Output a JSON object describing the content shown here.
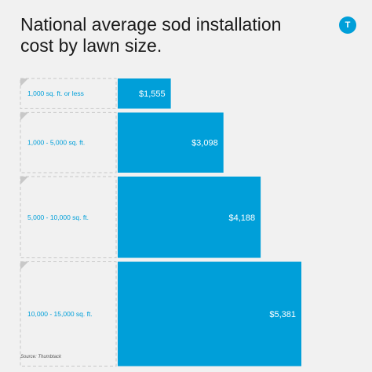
{
  "header": {
    "title_line1": "National average sod installation",
    "title_line2": "cost by lawn size.",
    "logo_letter": "T"
  },
  "colors": {
    "bar": "#009fd9",
    "label_text": "#009fd9",
    "value_text": "#ffffff",
    "background": "#f1f1f1"
  },
  "chart_data": {
    "type": "bar",
    "orientation": "horizontal",
    "categories": [
      "1,000 sq. ft. or less",
      "1,000 - 5,000 sq. ft.",
      "5,000 - 10,000 sq. ft.",
      "10,000 - 15,000 sq. ft."
    ],
    "values": [
      1555,
      3098,
      4188,
      5381
    ],
    "value_labels": [
      "$1,555",
      "$3,098",
      "$4,188",
      "$5,381"
    ],
    "title": "National average sod installation cost by lawn size."
  },
  "footer": {
    "source": "Source: Thumbtack"
  }
}
